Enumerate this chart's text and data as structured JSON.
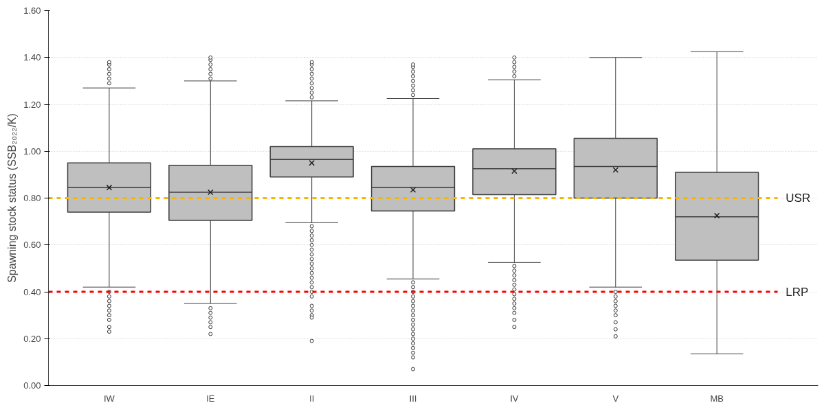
{
  "chart_data": {
    "type": "box",
    "ylabel": "Spawning stock status (SSB₂₀₂₂/K)",
    "categories": [
      "IW",
      "IE",
      "II",
      "III",
      "IV",
      "V",
      "MB"
    ],
    "color": "#bfbfbf",
    "boxes": [
      {
        "low": 0.42,
        "q1": 0.74,
        "median": 0.845,
        "q3": 0.95,
        "high": 1.27,
        "mean": 0.845,
        "outliers": [
          1.29,
          1.31,
          1.33,
          1.35,
          1.37,
          1.38,
          0.4,
          0.38,
          0.36,
          0.34,
          0.32,
          0.3,
          0.28,
          0.25,
          0.23
        ]
      },
      {
        "low": 0.35,
        "q1": 0.705,
        "median": 0.825,
        "q3": 0.94,
        "high": 1.3,
        "mean": 0.825,
        "outliers": [
          1.31,
          1.33,
          1.35,
          1.37,
          1.39,
          1.4,
          0.33,
          0.31,
          0.29,
          0.27,
          0.25,
          0.22
        ]
      },
      {
        "low": 0.695,
        "q1": 0.89,
        "median": 0.965,
        "q3": 1.02,
        "high": 1.215,
        "mean": 0.95,
        "outliers": [
          1.23,
          1.25,
          1.27,
          1.29,
          1.31,
          1.33,
          1.35,
          1.37,
          1.38,
          0.68,
          0.66,
          0.64,
          0.62,
          0.6,
          0.58,
          0.56,
          0.54,
          0.52,
          0.5,
          0.48,
          0.46,
          0.44,
          0.42,
          0.4,
          0.38,
          0.34,
          0.32,
          0.3,
          0.29,
          0.19
        ]
      },
      {
        "low": 0.455,
        "q1": 0.745,
        "median": 0.845,
        "q3": 0.935,
        "high": 1.225,
        "mean": 0.835,
        "outliers": [
          1.24,
          1.26,
          1.28,
          1.3,
          1.32,
          1.34,
          1.36,
          1.37,
          0.44,
          0.42,
          0.4,
          0.38,
          0.36,
          0.34,
          0.32,
          0.3,
          0.28,
          0.26,
          0.24,
          0.22,
          0.2,
          0.18,
          0.16,
          0.14,
          0.12,
          0.07
        ]
      },
      {
        "low": 0.525,
        "q1": 0.815,
        "median": 0.925,
        "q3": 1.01,
        "high": 1.305,
        "mean": 0.915,
        "outliers": [
          1.32,
          1.34,
          1.36,
          1.38,
          1.4,
          0.51,
          0.49,
          0.47,
          0.45,
          0.43,
          0.41,
          0.39,
          0.37,
          0.35,
          0.33,
          0.31,
          0.28,
          0.25
        ]
      },
      {
        "low": 0.42,
        "q1": 0.8,
        "median": 0.935,
        "q3": 1.055,
        "high": 1.4,
        "mean": 0.92,
        "outliers": [
          0.4,
          0.38,
          0.36,
          0.34,
          0.32,
          0.3,
          0.27,
          0.24,
          0.21
        ]
      },
      {
        "low": 0.135,
        "q1": 0.535,
        "median": 0.72,
        "q3": 0.91,
        "high": 1.425,
        "mean": 0.725
      }
    ],
    "ylim": [
      0,
      1.6
    ],
    "yticks": [
      {
        "value": 0,
        "label": "0.00"
      },
      {
        "value": 0.2,
        "label": "0.20"
      },
      {
        "value": 0.4,
        "label": "0.40"
      },
      {
        "value": 0.6,
        "label": "0.60"
      },
      {
        "value": 0.8,
        "label": "0.80"
      },
      {
        "value": 1.0,
        "label": "1.00"
      },
      {
        "value": 1.2,
        "label": "1.20"
      },
      {
        "value": 1.4,
        "label": "1.40"
      },
      {
        "value": 1.6,
        "label": "1.60"
      }
    ],
    "ref_lines": [
      {
        "axis": "y",
        "value": 0.8,
        "label": "USR",
        "color": "#f5b800",
        "line_style": "dashed"
      },
      {
        "axis": "y",
        "value": 0.4,
        "label": "LRP",
        "color": "#ff0000",
        "line_style": "dashed"
      }
    ],
    "grid": "y"
  }
}
